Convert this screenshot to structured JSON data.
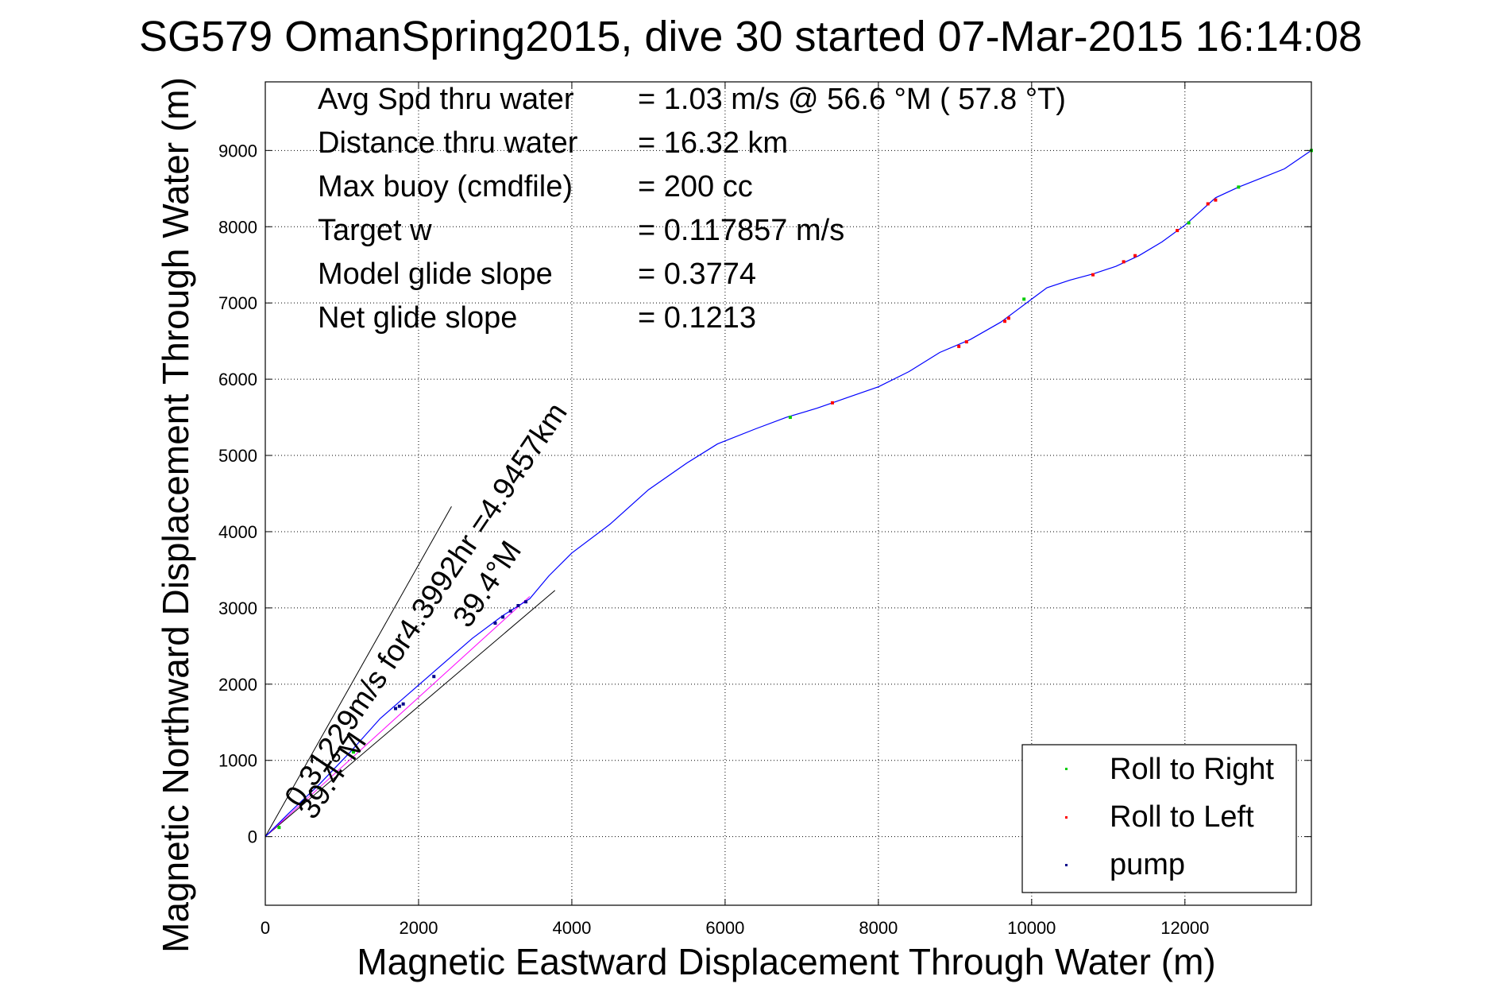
{
  "chart_data": {
    "type": "line",
    "title": "SG579 OmanSpring2015, dive 30 started 07-Mar-2015 16:14:08",
    "xlabel": "Magnetic Eastward Displacement Through Water (m)",
    "ylabel": "Magnetic Northward Displacement Through Water (m)",
    "xlim": [
      0,
      13650
    ],
    "ylim": [
      -900,
      9900
    ],
    "xticks": [
      "0",
      "2000",
      "4000",
      "6000",
      "8000",
      "10000",
      "12000"
    ],
    "xtick_values": [
      0,
      2000,
      4000,
      6000,
      8000,
      10000,
      12000
    ],
    "yticks": [
      "0",
      "1000",
      "2000",
      "3000",
      "4000",
      "5000",
      "6000",
      "7000",
      "8000",
      "9000"
    ],
    "ytick_values": [
      0,
      1000,
      2000,
      3000,
      4000,
      5000,
      6000,
      7000,
      8000,
      9000
    ],
    "grid": true,
    "legend_position": "bottom-right",
    "stats": [
      {
        "label": "Avg Spd thru water",
        "value": "=  1.03 m/s @  56.6 °M ( 57.8 °T)"
      },
      {
        "label": "Distance thru water",
        "value": "= 16.32 km"
      },
      {
        "label": "Max buoy (cmdfile)",
        "value": "= 200 cc"
      },
      {
        "label": "Target w",
        "value": "= 0.117857 m/s"
      },
      {
        "label": "Model glide slope",
        "value": "= 0.3774"
      },
      {
        "label": "Net glide slope",
        "value": "= 0.1213"
      }
    ],
    "annotations": {
      "current": "0.31229m/s for4.3992hr =4.9457km",
      "heading_upper": "39.4°M",
      "heading_lower": "39.4°M"
    },
    "track": {
      "color": "#0000ff",
      "x": [
        0,
        300,
        700,
        1100,
        1500,
        1900,
        2300,
        2700,
        3100,
        3450,
        3700,
        4000,
        4500,
        5000,
        5500,
        5900,
        6400,
        6800,
        7200,
        7600,
        8000,
        8400,
        8800,
        9200,
        9600,
        9800,
        10000,
        10200,
        10500,
        10800,
        11100,
        11400,
        11700,
        12000,
        12200,
        12400,
        12700,
        13000,
        13300,
        13650
      ],
      "y": [
        0,
        300,
        680,
        1100,
        1550,
        1900,
        2250,
        2600,
        2900,
        3120,
        3420,
        3720,
        4100,
        4550,
        4900,
        5150,
        5350,
        5500,
        5620,
        5760,
        5900,
        6100,
        6350,
        6520,
        6750,
        6900,
        7050,
        7200,
        7300,
        7380,
        7480,
        7620,
        7800,
        8020,
        8200,
        8380,
        8520,
        8640,
        8760,
        9000
      ]
    },
    "heading_lines": [
      {
        "name": "upper",
        "color": "#000000",
        "x": [
          0,
          2430
        ],
        "y": [
          0,
          4330
        ]
      },
      {
        "name": "lower",
        "color": "#000000",
        "x": [
          0,
          3780
        ],
        "y": [
          0,
          3230
        ]
      },
      {
        "name": "current",
        "color": "#ff00ff",
        "x": [
          0,
          3450
        ],
        "y": [
          0,
          3150
        ]
      }
    ],
    "series": [
      {
        "name": "Roll to Right",
        "color": "#00cc00",
        "x": [
          180,
          700,
          1150,
          6850,
          9900,
          12050,
          12700,
          13650
        ],
        "y": [
          120,
          640,
          1110,
          5500,
          7050,
          8050,
          8520,
          9000
        ]
      },
      {
        "name": "Roll to Left",
        "color": "#ff0000",
        "x": [
          7400,
          9050,
          9150,
          9650,
          9700,
          10800,
          11200,
          11350,
          11900,
          12300,
          12400
        ],
        "y": [
          5690,
          6430,
          6490,
          6760,
          6800,
          7370,
          7540,
          7620,
          7950,
          8300,
          8350
        ]
      },
      {
        "name": "pump",
        "color": "#00008b",
        "x": [
          1700,
          1750,
          1800,
          2200,
          3000,
          3100,
          3200,
          3300,
          3400
        ],
        "y": [
          1680,
          1710,
          1740,
          2100,
          2800,
          2880,
          2960,
          3030,
          3080
        ]
      }
    ]
  }
}
